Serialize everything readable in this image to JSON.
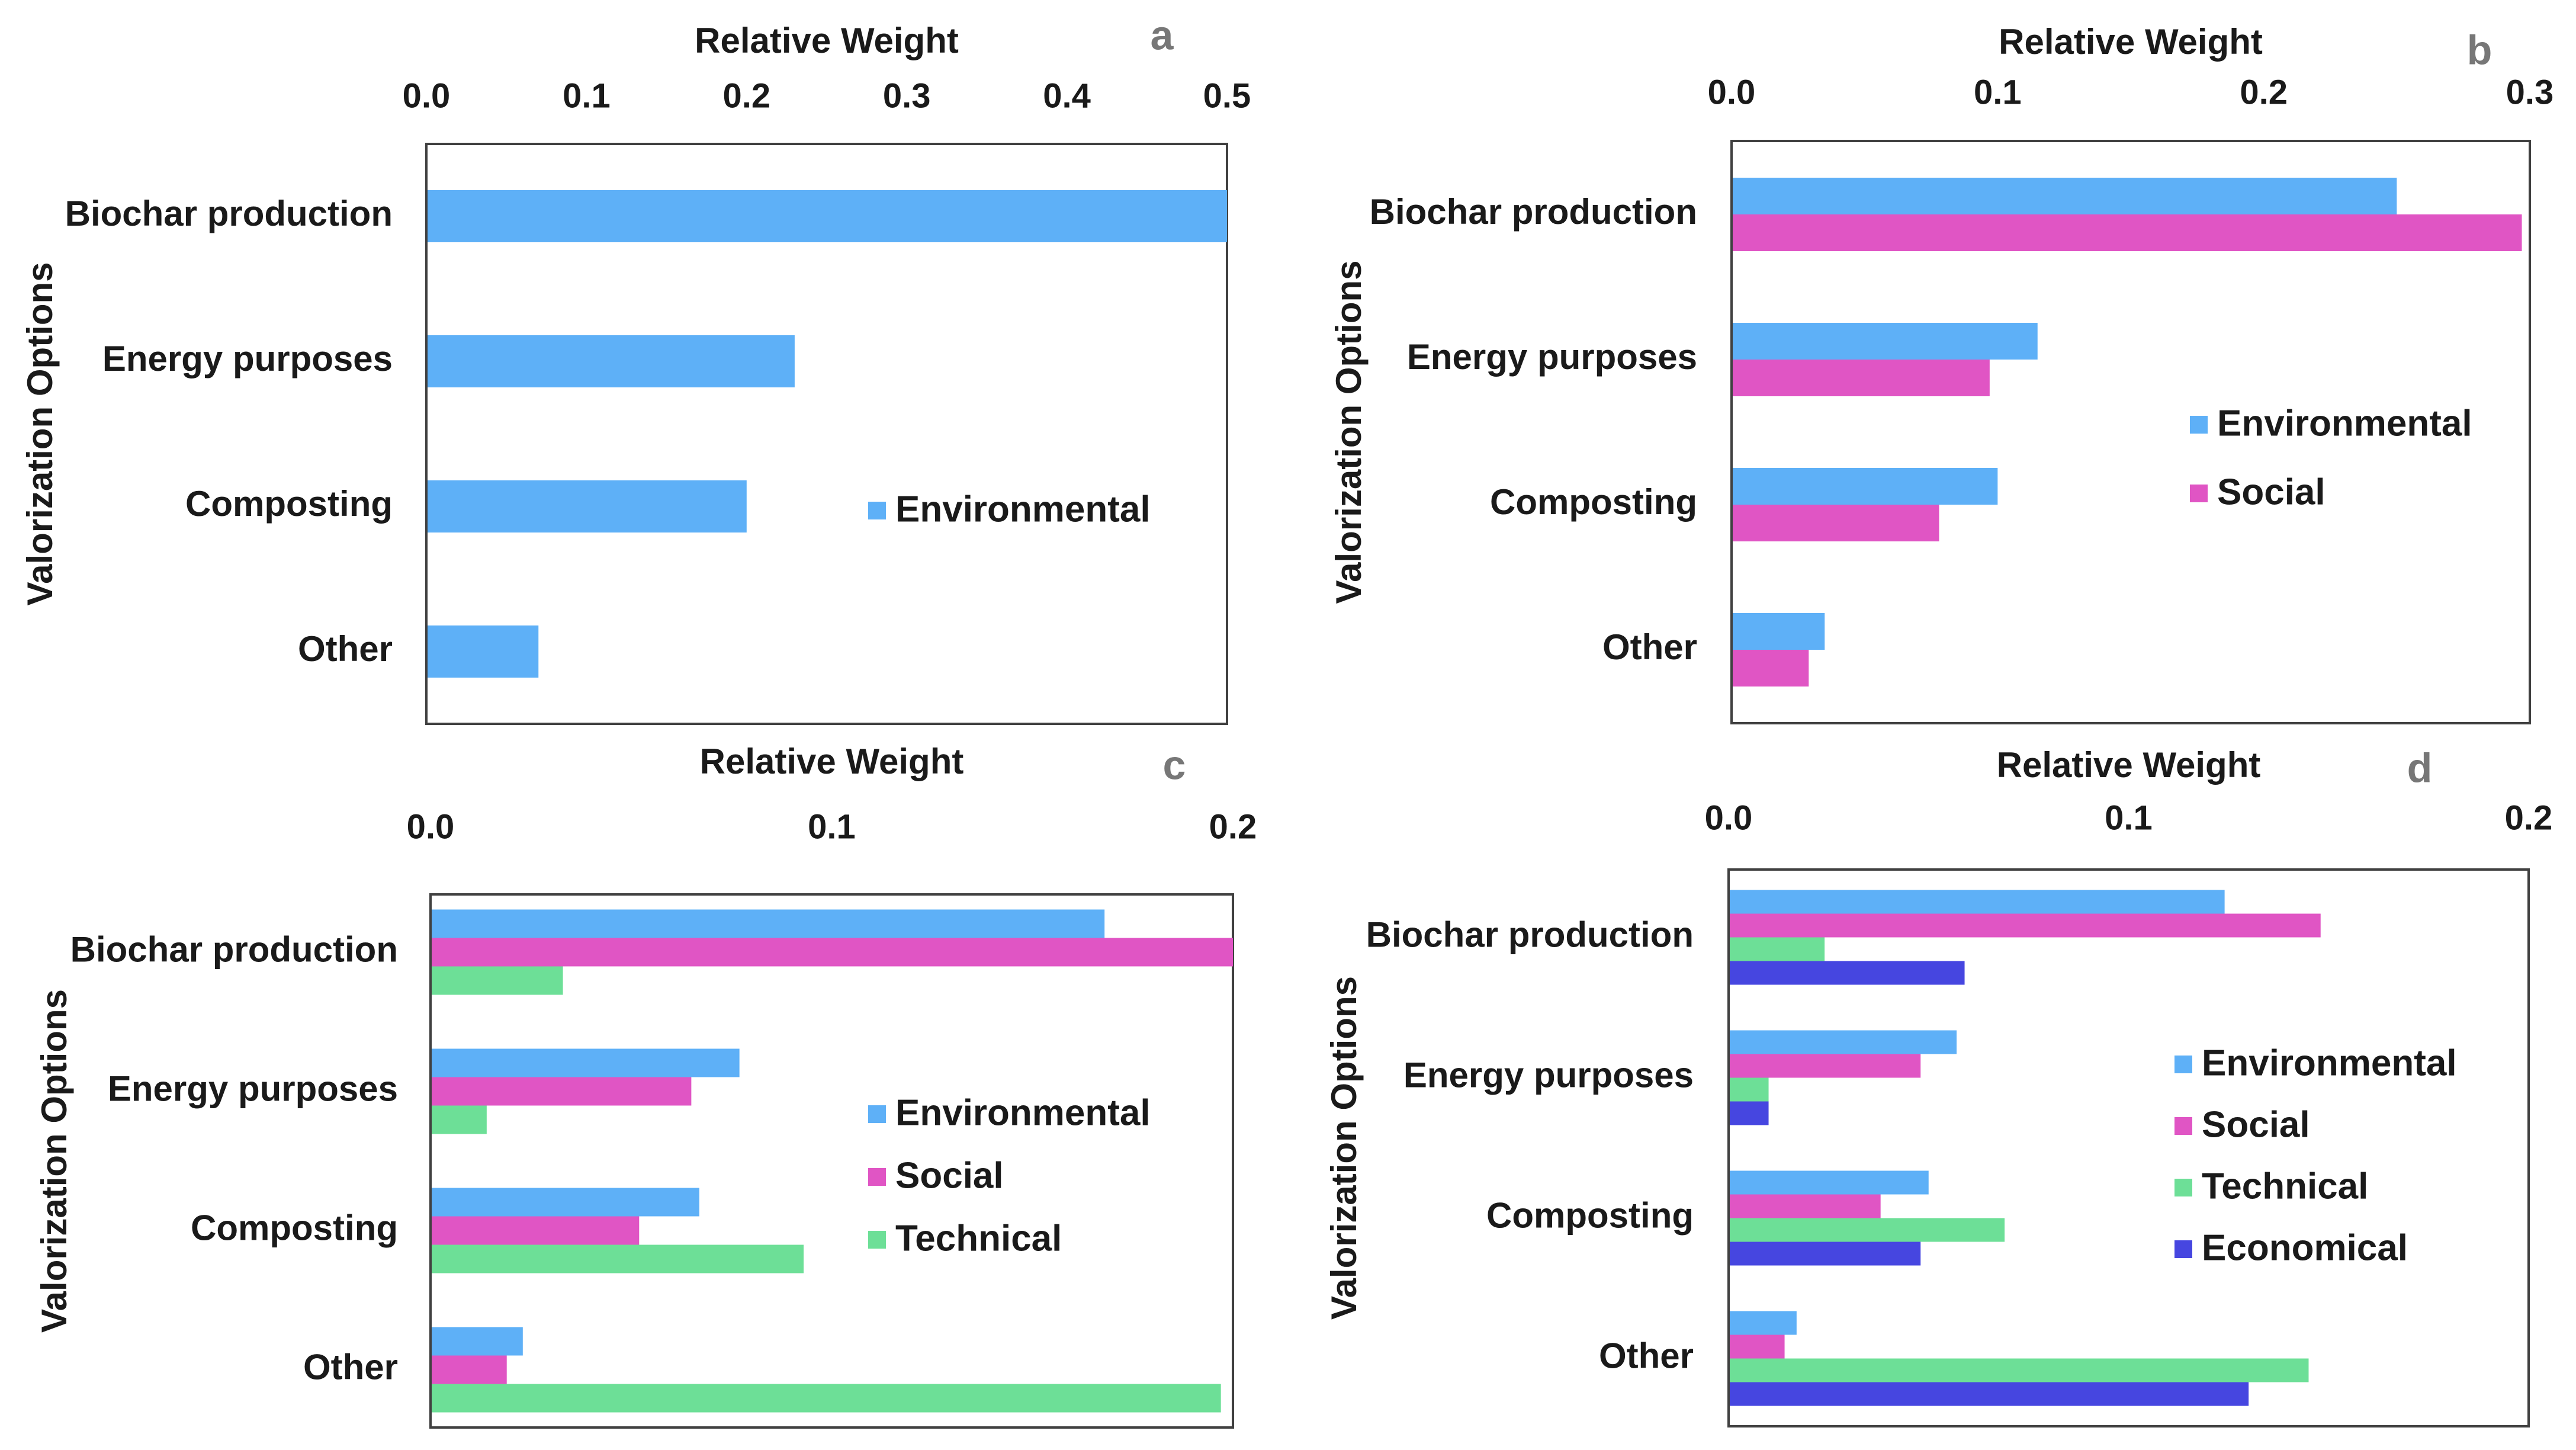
{
  "colors": {
    "Environmental": "#5eb0f7",
    "Social": "#e055c4",
    "Technical": "#6ddf97",
    "Economical": "#4646e0",
    "frame": "#404040",
    "text": "#1a1a1a"
  },
  "chart_data": [
    {
      "type": "bar",
      "orientation": "horizontal",
      "panel_label": "a",
      "xlabel": "Relative Weight",
      "ylabel": "Valorization Options",
      "xlim": [
        0,
        0.5
      ],
      "xticks": [
        "0.0",
        "0.1",
        "0.2",
        "0.3",
        "0.4",
        "0.5"
      ],
      "categories": [
        "Biochar production",
        "Energy purposes",
        "Composting",
        "Other"
      ],
      "series": [
        {
          "name": "Environmental",
          "values": [
            0.5,
            0.23,
            0.2,
            0.07
          ]
        }
      ],
      "legend_position": "center-right"
    },
    {
      "type": "bar",
      "orientation": "horizontal",
      "panel_label": "b",
      "xlabel": "Relative Weight",
      "ylabel": "Valorization Options",
      "xlim": [
        0,
        0.3
      ],
      "xticks": [
        "0.0",
        "0.1",
        "0.2",
        "0.3"
      ],
      "categories": [
        "Biochar production",
        "Energy purposes",
        "Composting",
        "Other"
      ],
      "series": [
        {
          "name": "Environmental",
          "values": [
            0.25,
            0.115,
            0.1,
            0.035
          ]
        },
        {
          "name": "Social",
          "values": [
            0.297,
            0.097,
            0.078,
            0.029
          ]
        }
      ],
      "legend_position": "center-right"
    },
    {
      "type": "bar",
      "orientation": "horizontal",
      "panel_label": "c",
      "xlabel": "Relative Weight",
      "ylabel": "Valorization Options",
      "xlim": [
        0,
        0.2
      ],
      "xticks": [
        "0.0",
        "0.1",
        "0.2"
      ],
      "categories": [
        "Biochar production",
        "Energy purposes",
        "Composting",
        "Other"
      ],
      "series": [
        {
          "name": "Environmental",
          "values": [
            0.168,
            0.077,
            0.067,
            0.023
          ]
        },
        {
          "name": "Social",
          "values": [
            0.2,
            0.065,
            0.052,
            0.019
          ]
        },
        {
          "name": "Technical",
          "values": [
            0.033,
            0.014,
            0.093,
            0.197
          ]
        }
      ],
      "legend_position": "center-right"
    },
    {
      "type": "bar",
      "orientation": "horizontal",
      "panel_label": "d",
      "xlabel": "Relative Weight",
      "ylabel": "Valorization Options",
      "xlim": [
        0,
        0.2
      ],
      "xticks": [
        "0.0",
        "0.1",
        "0.2"
      ],
      "categories": [
        "Biochar production",
        "Energy purposes",
        "Composting",
        "Other"
      ],
      "series": [
        {
          "name": "Environmental",
          "values": [
            0.124,
            0.057,
            0.05,
            0.017
          ]
        },
        {
          "name": "Social",
          "values": [
            0.148,
            0.048,
            0.038,
            0.014
          ]
        },
        {
          "name": "Technical",
          "values": [
            0.024,
            0.01,
            0.069,
            0.145
          ]
        },
        {
          "name": "Economical",
          "values": [
            0.059,
            0.01,
            0.048,
            0.13
          ]
        }
      ],
      "legend_position": "center-right"
    }
  ]
}
